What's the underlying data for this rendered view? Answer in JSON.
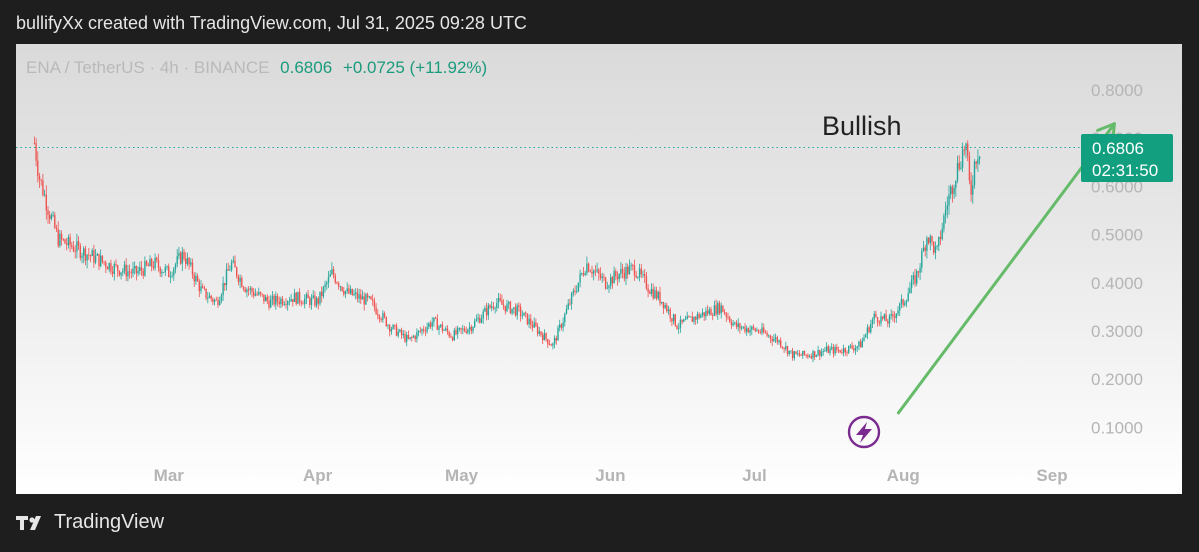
{
  "header": {
    "credit": "bullifyXx created with TradingView.com, Jul 31, 2025 09:28 UTC"
  },
  "legend": {
    "symbol": "ENA / TetherUS · 4h · BINANCE",
    "price": "0.6806",
    "change": "+0.0725 (+11.92%)"
  },
  "price_label": {
    "price": "0.6806",
    "countdown": "02:31:50"
  },
  "annotation": {
    "text": "Bullish"
  },
  "footer": {
    "brand": "TradingView"
  },
  "colors": {
    "up": "#26a69a",
    "down": "#ef5350",
    "arrow": "#66bb6a",
    "price_badge": "#119f80",
    "lightning": "#7b2a8f"
  },
  "icons": {
    "brand_logo": "tradingview-logo-icon",
    "event_marker": "lightning-icon"
  },
  "chart_data": {
    "type": "candlestick",
    "title": "",
    "ylim": [
      0.05,
      0.85
    ],
    "y_ticks": [
      "0.8000",
      "0.7000",
      "0.6000",
      "0.5000",
      "0.4000",
      "0.3000",
      "0.2000",
      "0.1000"
    ],
    "x_ticks": [
      "Mar",
      "Apr",
      "May",
      "Jun",
      "Jul",
      "Aug",
      "Sep"
    ],
    "last_price": 0.6806,
    "close_path": [
      [
        "2025-02-01",
        0.69
      ],
      [
        "2025-02-02",
        0.62
      ],
      [
        "2025-02-04",
        0.55
      ],
      [
        "2025-02-06",
        0.49
      ],
      [
        "2025-02-10",
        0.47
      ],
      [
        "2025-02-14",
        0.45
      ],
      [
        "2025-02-18",
        0.43
      ],
      [
        "2025-02-22",
        0.42
      ],
      [
        "2025-02-26",
        0.44
      ],
      [
        "2025-03-01",
        0.42
      ],
      [
        "2025-03-04",
        0.46
      ],
      [
        "2025-03-08",
        0.38
      ],
      [
        "2025-03-11",
        0.36
      ],
      [
        "2025-03-14",
        0.44
      ],
      [
        "2025-03-17",
        0.39
      ],
      [
        "2025-03-22",
        0.36
      ],
      [
        "2025-03-27",
        0.37
      ],
      [
        "2025-04-01",
        0.36
      ],
      [
        "2025-04-04",
        0.42
      ],
      [
        "2025-04-07",
        0.38
      ],
      [
        "2025-04-12",
        0.36
      ],
      [
        "2025-04-16",
        0.31
      ],
      [
        "2025-04-20",
        0.28
      ],
      [
        "2025-04-25",
        0.32
      ],
      [
        "2025-04-29",
        0.29
      ],
      [
        "2025-05-03",
        0.31
      ],
      [
        "2025-05-08",
        0.36
      ],
      [
        "2025-05-13",
        0.34
      ],
      [
        "2025-05-17",
        0.3
      ],
      [
        "2025-05-20",
        0.27
      ],
      [
        "2025-05-24",
        0.37
      ],
      [
        "2025-05-27",
        0.44
      ],
      [
        "2025-05-31",
        0.4
      ],
      [
        "2025-06-03",
        0.42
      ],
      [
        "2025-06-06",
        0.43
      ],
      [
        "2025-06-09",
        0.39
      ],
      [
        "2025-06-12",
        0.36
      ],
      [
        "2025-06-15",
        0.31
      ],
      [
        "2025-06-19",
        0.33
      ],
      [
        "2025-06-24",
        0.35
      ],
      [
        "2025-06-27",
        0.31
      ],
      [
        "2025-07-02",
        0.3
      ],
      [
        "2025-07-06",
        0.28
      ],
      [
        "2025-07-09",
        0.25
      ],
      [
        "2025-07-12",
        0.25
      ],
      [
        "2025-07-16",
        0.26
      ],
      [
        "2025-07-19",
        0.26
      ],
      [
        "2025-07-23",
        0.27
      ],
      [
        "2025-07-26",
        0.33
      ],
      [
        "2025-07-29",
        0.32
      ],
      [
        "2025-08-01",
        0.36
      ],
      [
        "2025-08-04",
        0.42
      ],
      [
        "2025-08-06",
        0.5
      ],
      [
        "2025-08-08",
        0.46
      ],
      [
        "2025-08-10",
        0.56
      ],
      [
        "2025-08-12",
        0.63
      ],
      [
        "2025-08-14",
        0.69
      ],
      [
        "2025-08-15",
        0.58
      ],
      [
        "2025-08-16",
        0.66
      ],
      [
        "2025-08-17",
        0.6806
      ]
    ],
    "annotations": [
      {
        "type": "text",
        "text": "Bullish"
      },
      {
        "type": "arrow",
        "from": [
          "2025-07-31",
          0.13
        ],
        "to": [
          "2025-09-14",
          0.73
        ]
      },
      {
        "type": "hline",
        "y": 0.6806,
        "style": "dotted"
      }
    ]
  }
}
